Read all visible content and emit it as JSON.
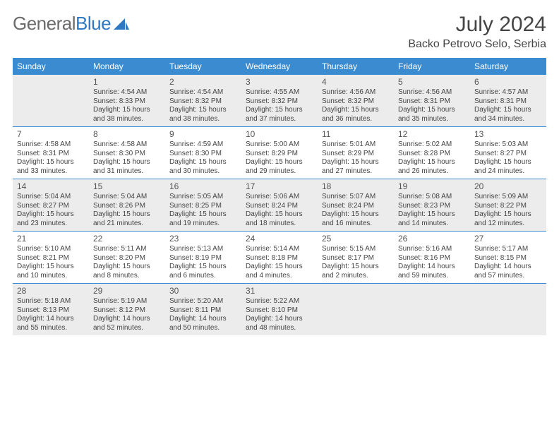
{
  "brand": {
    "part1": "General",
    "part2": "Blue"
  },
  "title": "July 2024",
  "location": "Backo Petrovo Selo, Serbia",
  "columns": [
    "Sunday",
    "Monday",
    "Tuesday",
    "Wednesday",
    "Thursday",
    "Friday",
    "Saturday"
  ],
  "theme": {
    "header_bg": "#3b8bd0",
    "header_fg": "#ffffff",
    "alt_row_bg": "#ececec",
    "rule_color": "#3b8bd0",
    "text_color": "#444444",
    "title_fontsize": 30,
    "location_fontsize": 16,
    "dayhead_fontsize": 12,
    "cell_fontsize": 10,
    "daynum_fontsize": 12
  },
  "days": [
    {
      "n": 1,
      "sunrise": "4:54 AM",
      "sunset": "8:33 PM",
      "daylight": "15 hours and 38 minutes."
    },
    {
      "n": 2,
      "sunrise": "4:54 AM",
      "sunset": "8:32 PM",
      "daylight": "15 hours and 38 minutes."
    },
    {
      "n": 3,
      "sunrise": "4:55 AM",
      "sunset": "8:32 PM",
      "daylight": "15 hours and 37 minutes."
    },
    {
      "n": 4,
      "sunrise": "4:56 AM",
      "sunset": "8:32 PM",
      "daylight": "15 hours and 36 minutes."
    },
    {
      "n": 5,
      "sunrise": "4:56 AM",
      "sunset": "8:31 PM",
      "daylight": "15 hours and 35 minutes."
    },
    {
      "n": 6,
      "sunrise": "4:57 AM",
      "sunset": "8:31 PM",
      "daylight": "15 hours and 34 minutes."
    },
    {
      "n": 7,
      "sunrise": "4:58 AM",
      "sunset": "8:31 PM",
      "daylight": "15 hours and 33 minutes."
    },
    {
      "n": 8,
      "sunrise": "4:58 AM",
      "sunset": "8:30 PM",
      "daylight": "15 hours and 31 minutes."
    },
    {
      "n": 9,
      "sunrise": "4:59 AM",
      "sunset": "8:30 PM",
      "daylight": "15 hours and 30 minutes."
    },
    {
      "n": 10,
      "sunrise": "5:00 AM",
      "sunset": "8:29 PM",
      "daylight": "15 hours and 29 minutes."
    },
    {
      "n": 11,
      "sunrise": "5:01 AM",
      "sunset": "8:29 PM",
      "daylight": "15 hours and 27 minutes."
    },
    {
      "n": 12,
      "sunrise": "5:02 AM",
      "sunset": "8:28 PM",
      "daylight": "15 hours and 26 minutes."
    },
    {
      "n": 13,
      "sunrise": "5:03 AM",
      "sunset": "8:27 PM",
      "daylight": "15 hours and 24 minutes."
    },
    {
      "n": 14,
      "sunrise": "5:04 AM",
      "sunset": "8:27 PM",
      "daylight": "15 hours and 23 minutes."
    },
    {
      "n": 15,
      "sunrise": "5:04 AM",
      "sunset": "8:26 PM",
      "daylight": "15 hours and 21 minutes."
    },
    {
      "n": 16,
      "sunrise": "5:05 AM",
      "sunset": "8:25 PM",
      "daylight": "15 hours and 19 minutes."
    },
    {
      "n": 17,
      "sunrise": "5:06 AM",
      "sunset": "8:24 PM",
      "daylight": "15 hours and 18 minutes."
    },
    {
      "n": 18,
      "sunrise": "5:07 AM",
      "sunset": "8:24 PM",
      "daylight": "15 hours and 16 minutes."
    },
    {
      "n": 19,
      "sunrise": "5:08 AM",
      "sunset": "8:23 PM",
      "daylight": "15 hours and 14 minutes."
    },
    {
      "n": 20,
      "sunrise": "5:09 AM",
      "sunset": "8:22 PM",
      "daylight": "15 hours and 12 minutes."
    },
    {
      "n": 21,
      "sunrise": "5:10 AM",
      "sunset": "8:21 PM",
      "daylight": "15 hours and 10 minutes."
    },
    {
      "n": 22,
      "sunrise": "5:11 AM",
      "sunset": "8:20 PM",
      "daylight": "15 hours and 8 minutes."
    },
    {
      "n": 23,
      "sunrise": "5:13 AM",
      "sunset": "8:19 PM",
      "daylight": "15 hours and 6 minutes."
    },
    {
      "n": 24,
      "sunrise": "5:14 AM",
      "sunset": "8:18 PM",
      "daylight": "15 hours and 4 minutes."
    },
    {
      "n": 25,
      "sunrise": "5:15 AM",
      "sunset": "8:17 PM",
      "daylight": "15 hours and 2 minutes."
    },
    {
      "n": 26,
      "sunrise": "5:16 AM",
      "sunset": "8:16 PM",
      "daylight": "14 hours and 59 minutes."
    },
    {
      "n": 27,
      "sunrise": "5:17 AM",
      "sunset": "8:15 PM",
      "daylight": "14 hours and 57 minutes."
    },
    {
      "n": 28,
      "sunrise": "5:18 AM",
      "sunset": "8:13 PM",
      "daylight": "14 hours and 55 minutes."
    },
    {
      "n": 29,
      "sunrise": "5:19 AM",
      "sunset": "8:12 PM",
      "daylight": "14 hours and 52 minutes."
    },
    {
      "n": 30,
      "sunrise": "5:20 AM",
      "sunset": "8:11 PM",
      "daylight": "14 hours and 50 minutes."
    },
    {
      "n": 31,
      "sunrise": "5:22 AM",
      "sunset": "8:10 PM",
      "daylight": "14 hours and 48 minutes."
    }
  ],
  "labels": {
    "sunrise": "Sunrise:",
    "sunset": "Sunset:",
    "daylight": "Daylight:"
  },
  "first_day_column_index": 1
}
